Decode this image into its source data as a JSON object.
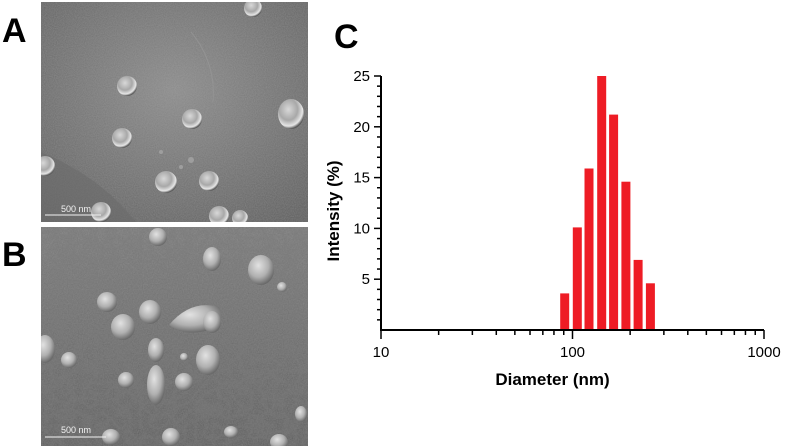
{
  "panels": {
    "a_label": "A",
    "b_label": "B",
    "c_label": "C"
  },
  "sem_images": [
    {
      "id": "A",
      "scale_bar_label": "500 nm"
    },
    {
      "id": "B",
      "scale_bar_label": "500 nm"
    }
  ],
  "chart_data": {
    "type": "bar",
    "xscale": "log",
    "xlabel": "Diameter (nm)",
    "ylabel": "Intensity (%)",
    "xlim": [
      10,
      1000
    ],
    "ylim": [
      0,
      25
    ],
    "x_tick_labels": [
      "10",
      "100",
      "1000"
    ],
    "y_tick_labels": [
      "5",
      "10",
      "15",
      "20",
      "25"
    ],
    "bar_color": "#ee1c25",
    "series": [
      {
        "x": [
          91,
          106,
          122,
          142,
          164,
          190,
          220,
          255
        ],
        "values": [
          3.6,
          10.1,
          15.9,
          25.0,
          21.2,
          14.6,
          6.9,
          4.6
        ]
      }
    ]
  }
}
